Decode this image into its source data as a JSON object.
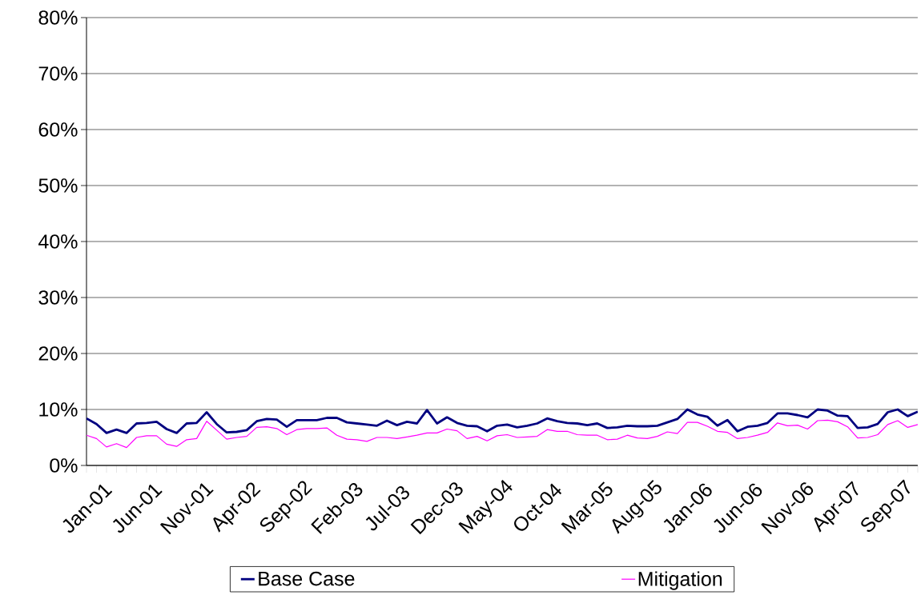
{
  "chart_data": {
    "type": "line",
    "categories": [
      "Jan-01",
      null,
      null,
      null,
      null,
      "Jun-01",
      null,
      null,
      null,
      null,
      "Nov-01",
      null,
      null,
      null,
      null,
      "Apr-02",
      null,
      null,
      null,
      null,
      "Sep-02",
      null,
      null,
      null,
      null,
      "Feb-03",
      null,
      null,
      null,
      null,
      "Jul-03",
      null,
      null,
      null,
      null,
      "Dec-03",
      null,
      null,
      null,
      null,
      "May-04",
      null,
      null,
      null,
      null,
      "Oct-04",
      null,
      null,
      null,
      null,
      "Mar-05",
      null,
      null,
      null,
      null,
      "Aug-05",
      null,
      null,
      null,
      null,
      "Jan-06",
      null,
      null,
      null,
      null,
      "Jun-06",
      null,
      null,
      null,
      null,
      "Nov-06",
      null,
      null,
      null,
      null,
      "Apr-07",
      null,
      null,
      null,
      null,
      "Sep-07",
      null,
      null,
      null
    ],
    "series": [
      {
        "name": "Base Case",
        "color": "#000080",
        "values": [
          8.4,
          7.4,
          5.8,
          6.4,
          5.8,
          7.5,
          7.6,
          7.8,
          6.5,
          5.8,
          7.5,
          7.6,
          9.5,
          7.4,
          5.9,
          6.0,
          6.3,
          7.9,
          8.3,
          8.2,
          6.9,
          8.1,
          8.1,
          8.1,
          8.5,
          8.5,
          7.7,
          7.5,
          7.3,
          7.1,
          8.0,
          7.2,
          7.8,
          7.5,
          9.9,
          7.5,
          8.6,
          7.6,
          7.1,
          7.0,
          6.1,
          7.1,
          7.3,
          6.8,
          7.1,
          7.5,
          8.4,
          7.9,
          7.6,
          7.5,
          7.2,
          7.5,
          6.7,
          6.8,
          7.1,
          7.0,
          7.0,
          7.1,
          7.7,
          8.3,
          10.0,
          9.1,
          8.7,
          7.1,
          8.1,
          6.1,
          6.9,
          7.1,
          7.6,
          9.3,
          9.3,
          9.0,
          8.6,
          10.0,
          9.8,
          8.9,
          8.8,
          6.7,
          6.8,
          7.4,
          9.5,
          10.0,
          8.8,
          9.6
        ]
      },
      {
        "name": "Mitigation",
        "color": "#ff00ff",
        "values": [
          5.4,
          4.8,
          3.3,
          3.9,
          3.2,
          5.0,
          5.3,
          5.3,
          3.8,
          3.4,
          4.6,
          4.8,
          7.9,
          6.3,
          4.7,
          5.0,
          5.2,
          6.8,
          6.9,
          6.6,
          5.5,
          6.4,
          6.6,
          6.6,
          6.7,
          5.4,
          4.7,
          4.6,
          4.3,
          5.0,
          5.0,
          4.8,
          5.1,
          5.4,
          5.8,
          5.8,
          6.5,
          6.2,
          4.8,
          5.2,
          4.4,
          5.3,
          5.5,
          5.0,
          5.1,
          5.2,
          6.4,
          6.1,
          6.1,
          5.5,
          5.4,
          5.4,
          4.6,
          4.7,
          5.4,
          4.9,
          4.8,
          5.2,
          6.0,
          5.7,
          7.7,
          7.7,
          7.0,
          6.1,
          5.9,
          4.8,
          5.0,
          5.4,
          5.9,
          7.6,
          7.1,
          7.2,
          6.5,
          8.0,
          8.1,
          7.8,
          6.9,
          4.9,
          5.0,
          5.5,
          7.3,
          8.0,
          6.8,
          7.3
        ]
      }
    ],
    "ylim": [
      0,
      80
    ],
    "yticks": [
      {
        "value": 0,
        "label": "0%"
      },
      {
        "value": 10,
        "label": "10%"
      },
      {
        "value": 20,
        "label": "20%"
      },
      {
        "value": 30,
        "label": "30%"
      },
      {
        "value": 40,
        "label": "40%"
      },
      {
        "value": 50,
        "label": "50%"
      },
      {
        "value": 60,
        "label": "60%"
      },
      {
        "value": 70,
        "label": "70%"
      },
      {
        "value": 80,
        "label": "80%"
      }
    ],
    "grid": "y",
    "legend": "bottom",
    "marker": "none",
    "line_style": "solid"
  }
}
